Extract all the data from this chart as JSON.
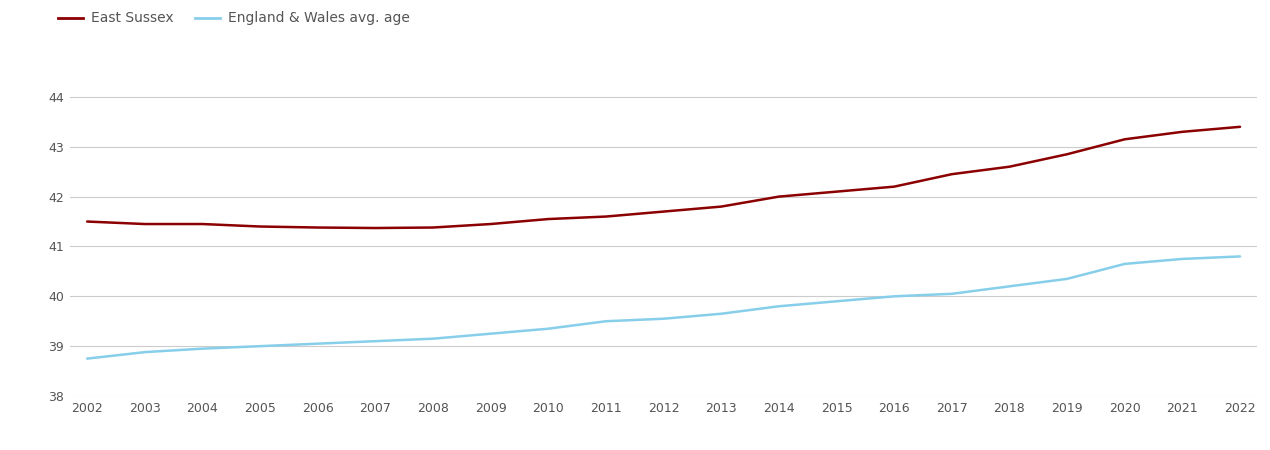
{
  "years": [
    2002,
    2003,
    2004,
    2005,
    2006,
    2007,
    2008,
    2009,
    2010,
    2011,
    2012,
    2013,
    2014,
    2015,
    2016,
    2017,
    2018,
    2019,
    2020,
    2021,
    2022
  ],
  "east_sussex": [
    41.5,
    41.45,
    41.45,
    41.4,
    41.38,
    41.37,
    41.38,
    41.45,
    41.55,
    41.6,
    41.7,
    41.8,
    42.0,
    42.1,
    42.2,
    42.45,
    42.6,
    42.85,
    43.15,
    43.3,
    43.4
  ],
  "england_wales": [
    38.75,
    38.88,
    38.95,
    39.0,
    39.05,
    39.1,
    39.15,
    39.25,
    39.35,
    39.5,
    39.55,
    39.65,
    39.8,
    39.9,
    40.0,
    40.05,
    40.2,
    40.35,
    40.65,
    40.75,
    40.8
  ],
  "east_sussex_color": "#8B0000",
  "england_wales_color": "#87CEEB",
  "east_sussex_label": "East Sussex",
  "england_wales_label": "England & Wales avg. age",
  "ylim": [
    38,
    44.5
  ],
  "yticks": [
    38,
    39,
    40,
    41,
    42,
    43,
    44
  ],
  "line_width": 1.8,
  "background_color": "#ffffff",
  "grid_color": "#cccccc",
  "tick_fontsize": 9,
  "tick_color": "#555555",
  "legend_fontsize": 10,
  "legend_color": "#555555"
}
